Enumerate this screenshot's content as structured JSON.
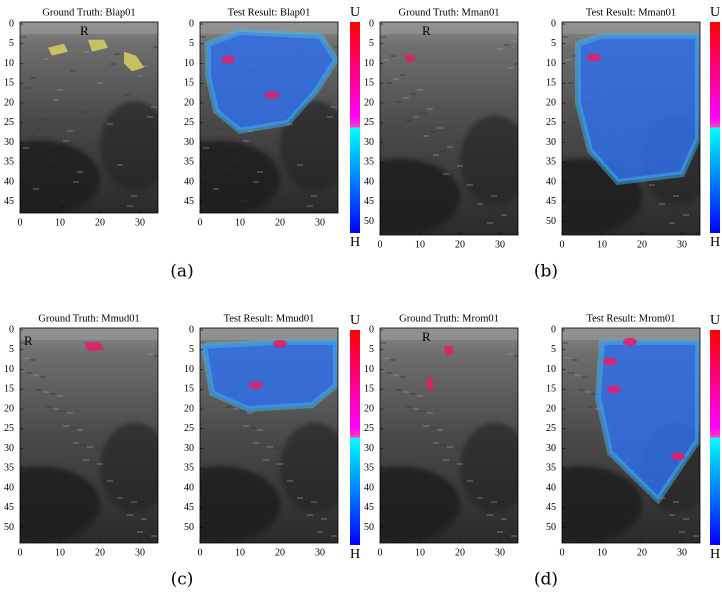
{
  "panels": [
    {
      "caption": "(a)",
      "ground_truth": {
        "title": "Ground Truth: Blap01",
        "marker": "R",
        "yticks": [
          0,
          5,
          10,
          15,
          20,
          25,
          30,
          35,
          40,
          45
        ],
        "xticks": [
          0,
          10,
          20,
          30
        ]
      },
      "result": {
        "title": "Test Result: Blap01",
        "yticks": [
          0,
          5,
          10,
          15,
          20,
          25,
          30,
          35,
          40,
          45
        ],
        "xticks": [
          0,
          10,
          20,
          30
        ]
      },
      "colorbar": {
        "top": "U",
        "bottom": "H"
      }
    },
    {
      "caption": "(b)",
      "ground_truth": {
        "title": "Ground Truth: Mman01",
        "marker": "R",
        "yticks": [
          0,
          5,
          10,
          15,
          20,
          25,
          30,
          35,
          40,
          45,
          50
        ],
        "xticks": [
          0,
          10,
          20,
          30
        ]
      },
      "result": {
        "title": "Test Result: Mman01",
        "yticks": [
          0,
          5,
          10,
          15,
          20,
          25,
          30,
          35,
          40,
          45,
          50
        ],
        "xticks": [
          0,
          10,
          20,
          30
        ]
      },
      "colorbar": {
        "top": "U",
        "bottom": "H"
      }
    },
    {
      "caption": "(c)",
      "ground_truth": {
        "title": "Ground Truth: Mmud01",
        "marker": "R",
        "yticks": [
          0,
          5,
          10,
          15,
          20,
          25,
          30,
          35,
          40,
          45,
          50
        ],
        "xticks": [
          0,
          10,
          20,
          30
        ]
      },
      "result": {
        "title": "Test Result: Mmud01",
        "yticks": [
          0,
          5,
          10,
          15,
          20,
          25,
          30,
          35,
          40,
          45,
          50
        ],
        "xticks": [
          0,
          10,
          20,
          30
        ]
      },
      "colorbar": {
        "top": "U",
        "bottom": "H"
      }
    },
    {
      "caption": "(d)",
      "ground_truth": {
        "title": "Ground Truth: Mrom01",
        "marker": "R",
        "yticks": [
          0,
          5,
          10,
          15,
          20,
          25,
          30,
          35,
          40,
          45,
          50
        ],
        "xticks": [
          0,
          10,
          20,
          30
        ]
      },
      "result": {
        "title": "Test Result: Mrom01",
        "yticks": [
          0,
          5,
          10,
          15,
          20,
          25,
          30,
          35,
          40,
          45,
          50
        ],
        "xticks": [
          0,
          10,
          20,
          30
        ]
      },
      "colorbar": {
        "top": "U",
        "bottom": "H"
      }
    }
  ]
}
